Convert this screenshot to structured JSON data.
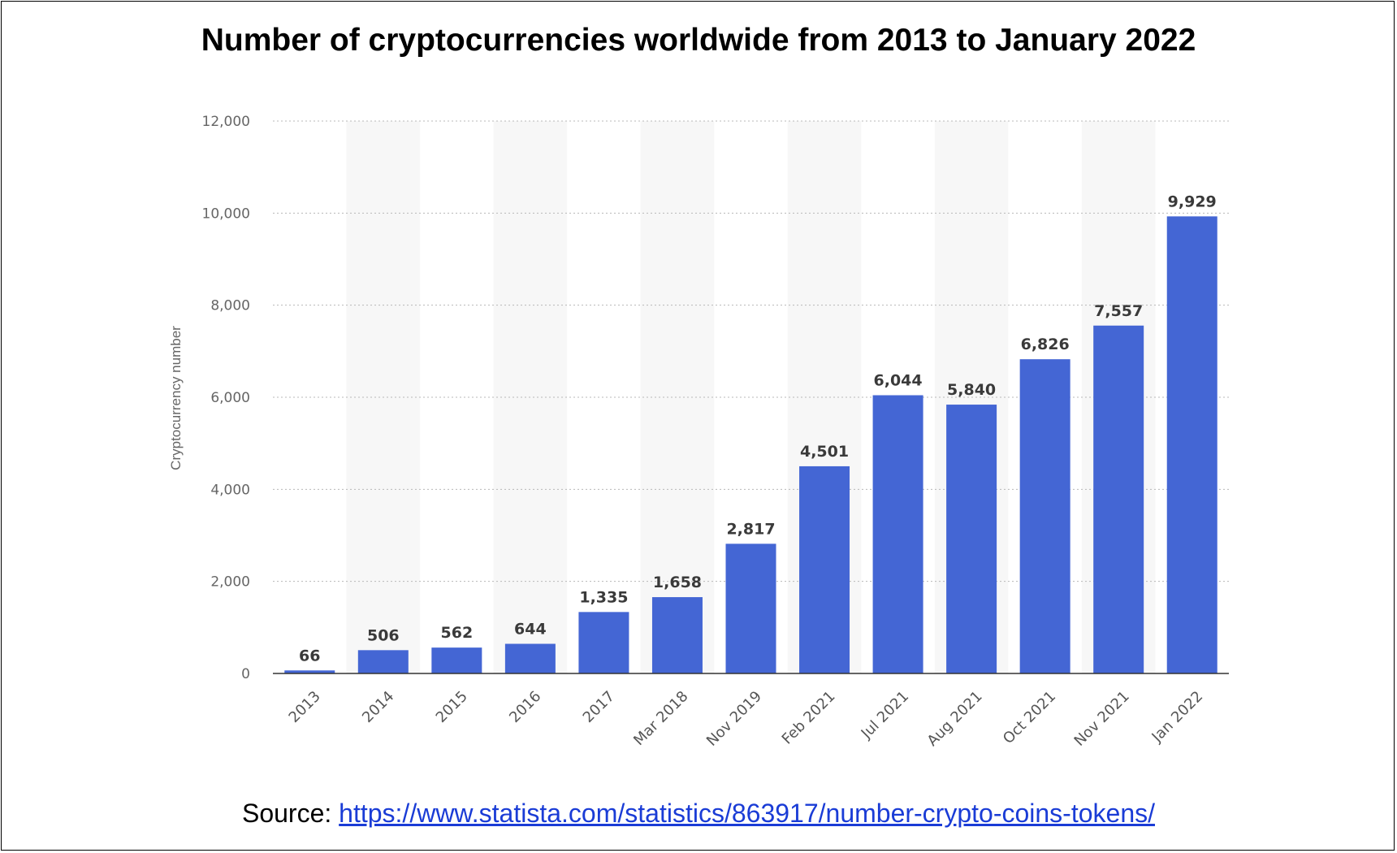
{
  "chart_data": {
    "type": "bar",
    "title": "Number of cryptocurrencies worldwide from 2013 to January 2022",
    "xlabel": "",
    "ylabel": "Cryptocurrency number",
    "categories": [
      "2013",
      "2014",
      "2015",
      "2016",
      "2017",
      "Mar 2018",
      "Nov 2019",
      "Feb 2021",
      "Jul 2021",
      "Aug 2021",
      "Oct 2021",
      "Nov 2021",
      "Jan 2022"
    ],
    "values": [
      66,
      506,
      562,
      644,
      1335,
      1658,
      2817,
      4501,
      6044,
      5840,
      6826,
      7557,
      9929
    ],
    "value_labels": [
      "66",
      "506",
      "562",
      "644",
      "1,335",
      "1,658",
      "2,817",
      "4,501",
      "6,044",
      "5,840",
      "6,826",
      "7,557",
      "9,929"
    ],
    "ylim": [
      0,
      12000
    ],
    "yticks": [
      0,
      2000,
      4000,
      6000,
      8000,
      10000,
      12000
    ],
    "ytick_labels": [
      "0",
      "2,000",
      "4,000",
      "6,000",
      "8,000",
      "10,000",
      "12,000"
    ],
    "grid": true,
    "bar_color": "#4466d4"
  },
  "source": {
    "label": "Source:",
    "url_text": "https://www.statista.com/statistics/863917/number-crypto-coins-tokens/"
  }
}
